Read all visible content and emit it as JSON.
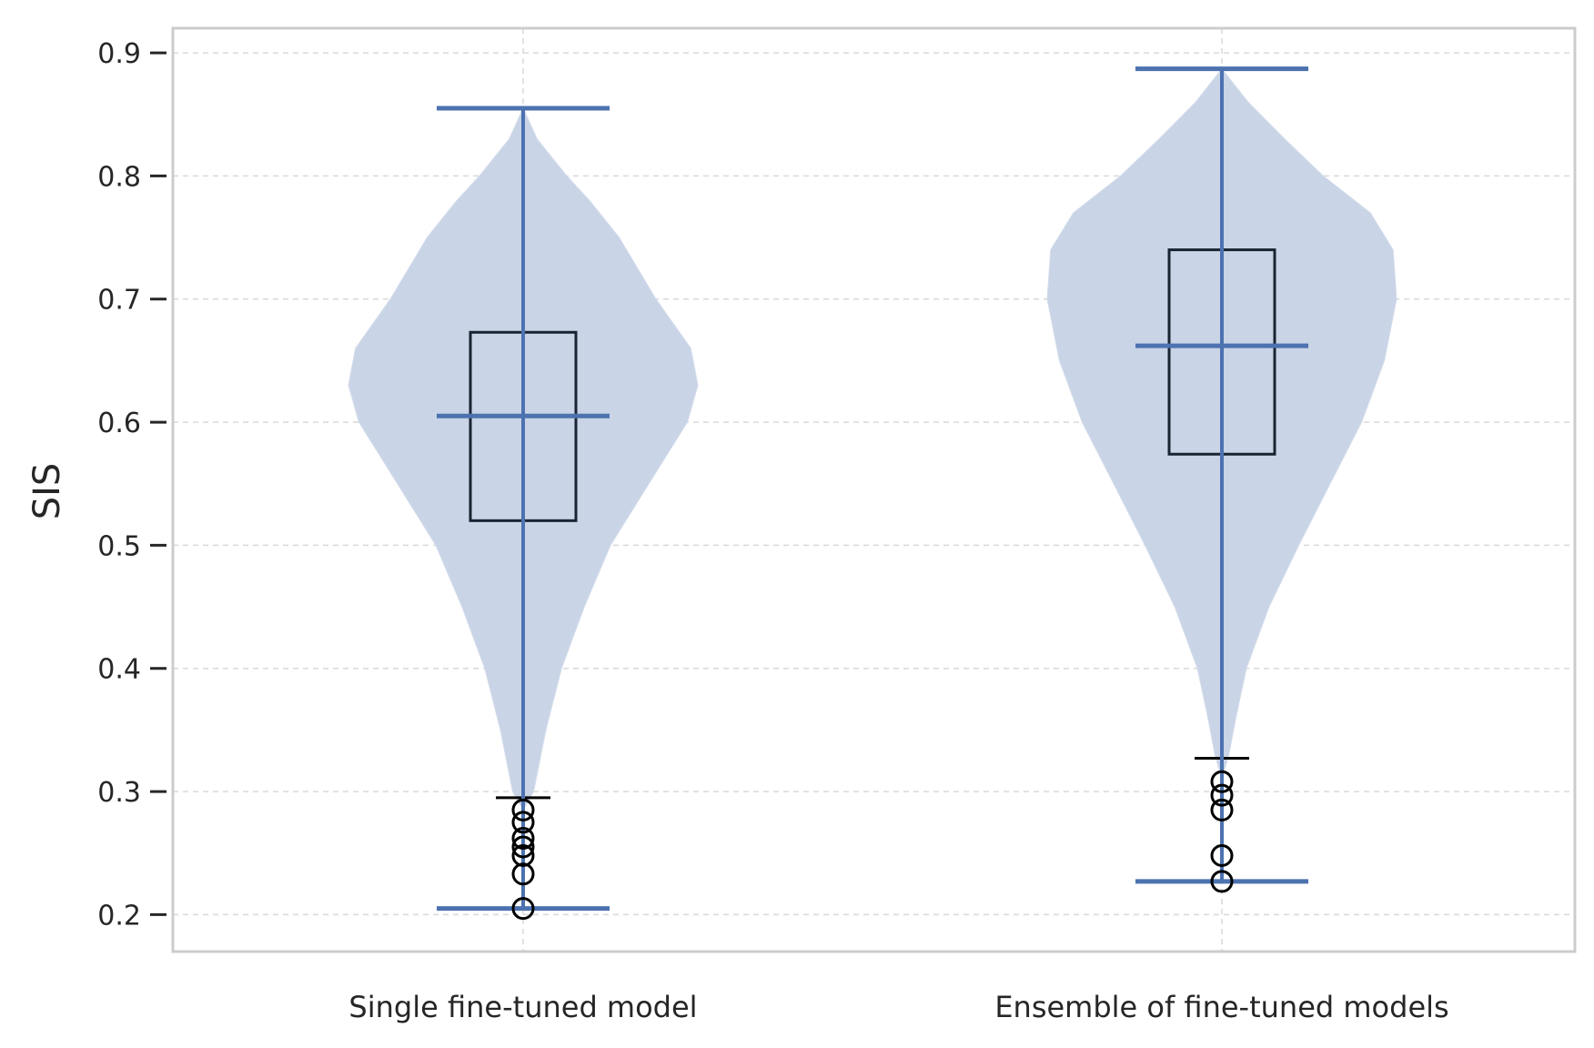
{
  "chart_data": {
    "type": "violin",
    "ylabel": "SIS",
    "xlabel": "",
    "ylim": [
      0.17,
      0.92
    ],
    "yticks": [
      0.2,
      0.3,
      0.4,
      0.5,
      0.6,
      0.7,
      0.8,
      0.9
    ],
    "ytick_labels": [
      "0.2",
      "0.3",
      "0.4",
      "0.5",
      "0.6",
      "0.7",
      "0.8",
      "0.9"
    ],
    "grid": true,
    "colors": {
      "violin_fill": "#c9d4e6",
      "violin_lines": "#4c72b0",
      "box": "#1a2332",
      "grid": "#d9d9d9",
      "frame": "#cccccc"
    },
    "categories": [
      "Single fine-tuned model",
      "Ensemble of fine-tuned models"
    ],
    "violins": [
      {
        "name": "Single fine-tuned model",
        "min": 0.205,
        "max": 0.855,
        "median": 0.605,
        "q1": 0.52,
        "q3": 0.673,
        "whisker_low": 0.295,
        "outliers": [
          0.205,
          0.233,
          0.248,
          0.255,
          0.262,
          0.275,
          0.285
        ],
        "density": [
          [
            0.285,
            0.0
          ],
          [
            0.3,
            0.06
          ],
          [
            0.35,
            0.13
          ],
          [
            0.4,
            0.22
          ],
          [
            0.45,
            0.35
          ],
          [
            0.5,
            0.5
          ],
          [
            0.55,
            0.72
          ],
          [
            0.6,
            0.94
          ],
          [
            0.63,
            1.0
          ],
          [
            0.66,
            0.96
          ],
          [
            0.7,
            0.76
          ],
          [
            0.75,
            0.55
          ],
          [
            0.78,
            0.38
          ],
          [
            0.8,
            0.25
          ],
          [
            0.83,
            0.08
          ],
          [
            0.855,
            0.0
          ]
        ]
      },
      {
        "name": "Ensemble of fine-tuned models",
        "min": 0.227,
        "max": 0.887,
        "median": 0.662,
        "q1": 0.574,
        "q3": 0.74,
        "whisker_low": 0.327,
        "outliers": [
          0.227,
          0.248,
          0.285,
          0.297,
          0.308
        ],
        "density": [
          [
            0.31,
            0.0
          ],
          [
            0.33,
            0.04
          ],
          [
            0.36,
            0.08
          ],
          [
            0.4,
            0.14
          ],
          [
            0.45,
            0.27
          ],
          [
            0.5,
            0.44
          ],
          [
            0.55,
            0.62
          ],
          [
            0.6,
            0.8
          ],
          [
            0.65,
            0.93
          ],
          [
            0.7,
            1.0
          ],
          [
            0.74,
            0.98
          ],
          [
            0.77,
            0.85
          ],
          [
            0.8,
            0.58
          ],
          [
            0.83,
            0.36
          ],
          [
            0.86,
            0.15
          ],
          [
            0.887,
            0.0
          ]
        ]
      }
    ]
  }
}
